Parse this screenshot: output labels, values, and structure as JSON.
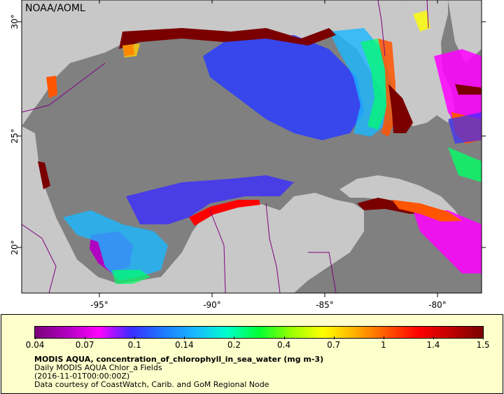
{
  "map": {
    "credit": "NOAA/AOML",
    "lon_labels": [
      "-95°",
      "-90°",
      "-85°",
      "-80°"
    ],
    "lat_labels": [
      "30°",
      "25°",
      "20°"
    ],
    "colors": {
      "land": "#c8c8c8",
      "nodata_ocean": "#808080",
      "border": "#800080",
      "frame": "#000000"
    }
  },
  "legend": {
    "ticks": [
      "0.04",
      "0.07",
      "0.1",
      "0.14",
      "0.2",
      "0.4",
      "0.7",
      "1",
      "1.4",
      "1.5"
    ],
    "colors": [
      "#7a007a",
      "#b000c0",
      "#ff00ff",
      "#3b2cff",
      "#1d79ff",
      "#19b8ff",
      "#00ffcc",
      "#00ff33",
      "#99ff00",
      "#ffff00",
      "#ffb000",
      "#ff5500",
      "#ff0000",
      "#c00000",
      "#7a0000"
    ],
    "line1": "MODIS AQUA, concentration_of_chlorophyll_in_sea_water (mg m-3)",
    "line2": "Daily MODIS AQUA Chlor_a Fields",
    "line3": "(2016-11-01T00:00:00Z)",
    "line4": "Data courtesy of CoastWatch, Carib. and GoM Regional Node"
  }
}
